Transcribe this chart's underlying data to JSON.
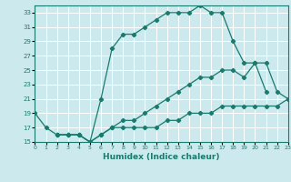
{
  "title": "",
  "xlabel": "Humidex (Indice chaleur)",
  "bg_color": "#cce9ed",
  "grid_color": "#ffffff",
  "line_color": "#1a7a6e",
  "xmin": 0,
  "xmax": 23,
  "ymin": 15,
  "ymax": 34,
  "xticks": [
    0,
    1,
    2,
    3,
    4,
    5,
    6,
    7,
    8,
    9,
    10,
    11,
    12,
    13,
    14,
    15,
    16,
    17,
    18,
    19,
    20,
    21,
    22,
    23
  ],
  "yticks": [
    15,
    17,
    19,
    21,
    23,
    25,
    27,
    29,
    31,
    33
  ],
  "curve1_x": [
    0,
    1,
    2,
    3,
    4,
    5,
    6,
    7,
    8,
    9,
    10,
    11,
    12,
    13,
    14,
    15,
    16,
    17,
    18,
    19,
    20,
    21
  ],
  "curve1_y": [
    19,
    17,
    16,
    16,
    16,
    15,
    21,
    28,
    30,
    30,
    31,
    32,
    33,
    33,
    33,
    34,
    33,
    33,
    29,
    26,
    26,
    22
  ],
  "curve2_x": [
    2,
    3,
    4,
    5,
    6,
    7,
    8,
    9,
    10,
    11,
    12,
    13,
    14,
    15,
    16,
    17,
    18,
    19,
    20,
    21,
    22,
    23
  ],
  "curve2_y": [
    16,
    16,
    16,
    15,
    16,
    17,
    18,
    18,
    19,
    20,
    21,
    22,
    23,
    24,
    24,
    25,
    25,
    24,
    26,
    26,
    22,
    21
  ],
  "curve3_x": [
    2,
    3,
    4,
    5,
    6,
    7,
    8,
    9,
    10,
    11,
    12,
    13,
    14,
    15,
    16,
    17,
    18,
    19,
    20,
    21,
    22,
    23
  ],
  "curve3_y": [
    16,
    16,
    16,
    15,
    16,
    17,
    17,
    17,
    17,
    17,
    18,
    18,
    19,
    19,
    19,
    20,
    20,
    20,
    20,
    20,
    20,
    21
  ]
}
